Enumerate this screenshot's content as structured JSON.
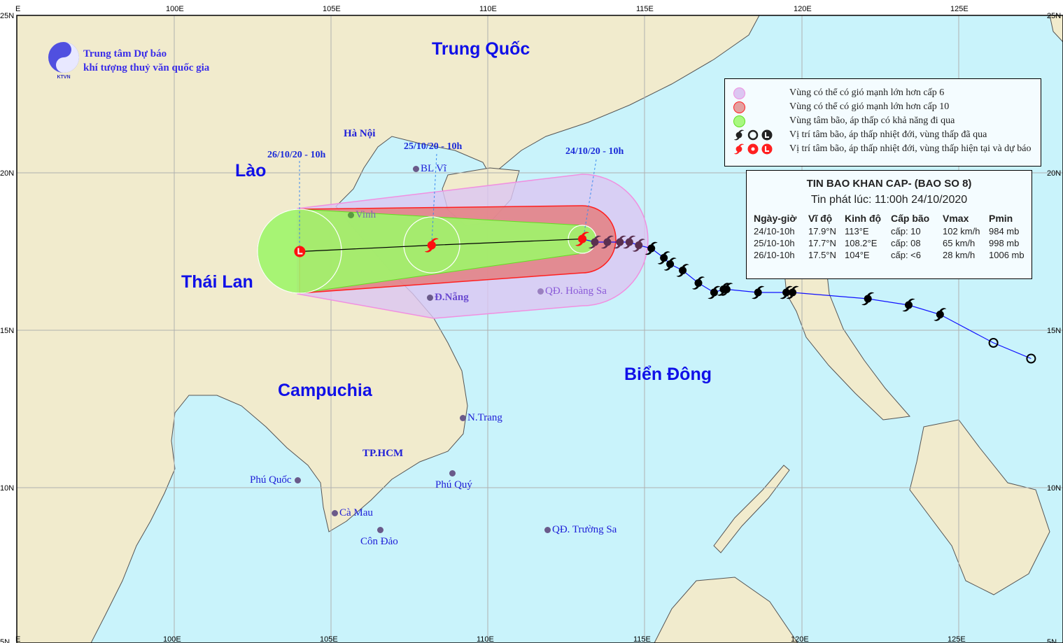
{
  "organization": {
    "logo_text": "KTVN",
    "line1": "Trung tâm Dự báo",
    "line2": "khí tượng thuỷ văn quốc gia"
  },
  "colors": {
    "sea": "#c9f3fb",
    "land": "#f1ebcd",
    "zone_gt_cap6": "#dcc6f2",
    "zone_gt_cap10": "#e47f80",
    "zone_center_path": "#9ef56a",
    "past_track": "#1010ff",
    "forecast": "#ff1010"
  },
  "axes": {
    "top_lon_labels": [
      "E",
      "100E",
      "105E",
      "110E",
      "115E",
      "120E",
      "125E"
    ],
    "bottom_lon_labels": [
      "E",
      "100E",
      "105E",
      "110E",
      "115E",
      "120E",
      "125E"
    ],
    "left_lat_labels": [
      "25N",
      "20N",
      "15N",
      "10N",
      "5N"
    ],
    "right_lat_labels": [
      "25N",
      "20N",
      "15N",
      "10N",
      "5N"
    ]
  },
  "countries": {
    "china": "Trung Quốc",
    "laos": "Lào",
    "thailand": "Thái Lan",
    "cambodia": "Campuchia",
    "east_sea": "Biển Đông"
  },
  "cities": {
    "hanoi": "Hà Nội",
    "bach_long_vi": "BL Vĩ",
    "vinh": "Vinh",
    "da_nang": "Đ.Nẵng",
    "hoang_sa": "QĐ. Hoàng Sa",
    "nha_trang": "N.Trang",
    "hcm": "TP.HCM",
    "phu_quoc": "Phú Quốc",
    "phu_quy": "Phú Quý",
    "ca_mau": "Cà Mau",
    "con_dao": "Côn Đảo",
    "truong_sa": "QĐ. Trường Sa"
  },
  "forecast_labels": [
    "24/10/20 - 10h",
    "25/10/20 - 10h",
    "26/10/20 - 10h"
  ],
  "forecast_points": [
    {
      "lat": 17.9,
      "lon": 113.0,
      "type": "storm"
    },
    {
      "lat": 17.7,
      "lon": 108.2,
      "type": "storm"
    },
    {
      "lat": 17.5,
      "lon": 104.0,
      "type": "low"
    }
  ],
  "past_track": [
    {
      "lat": 14.1,
      "lon": 127.3,
      "type": "depression"
    },
    {
      "lat": 14.6,
      "lon": 126.1,
      "type": "depression"
    },
    {
      "lat": 15.5,
      "lon": 124.4,
      "type": "storm"
    },
    {
      "lat": 15.8,
      "lon": 123.4,
      "type": "storm"
    },
    {
      "lat": 16.0,
      "lon": 122.1,
      "type": "storm"
    },
    {
      "lat": 16.2,
      "lon": 119.7,
      "type": "storm"
    },
    {
      "lat": 16.2,
      "lon": 119.5,
      "type": "storm"
    },
    {
      "lat": 16.2,
      "lon": 118.6,
      "type": "storm"
    },
    {
      "lat": 16.3,
      "lon": 117.6,
      "type": "storm"
    },
    {
      "lat": 16.3,
      "lon": 117.5,
      "type": "storm"
    },
    {
      "lat": 16.2,
      "lon": 117.2,
      "type": "storm"
    },
    {
      "lat": 16.5,
      "lon": 116.7,
      "type": "storm"
    },
    {
      "lat": 16.9,
      "lon": 116.2,
      "type": "storm"
    },
    {
      "lat": 17.1,
      "lon": 115.8,
      "type": "storm"
    },
    {
      "lat": 17.3,
      "lon": 115.6,
      "type": "storm"
    },
    {
      "lat": 17.6,
      "lon": 115.2,
      "type": "storm"
    },
    {
      "lat": 17.7,
      "lon": 114.8,
      "type": "storm"
    },
    {
      "lat": 17.8,
      "lon": 114.5,
      "type": "storm"
    },
    {
      "lat": 17.8,
      "lon": 114.2,
      "type": "storm"
    },
    {
      "lat": 17.8,
      "lon": 113.8,
      "type": "storm"
    },
    {
      "lat": 17.8,
      "lon": 113.4,
      "type": "storm"
    }
  ],
  "legend": {
    "items": [
      {
        "label": "Vùng có thể có gió mạnh lớn hơn cấp 6"
      },
      {
        "label": "Vùng có thể có gió mạnh lớn hơn cấp 10"
      },
      {
        "label": "Vùng tâm bão, áp thấp có khả năng đi qua"
      },
      {
        "label": "Vị trí tâm bão, áp thấp nhiệt đới, vùng thấp đã qua"
      },
      {
        "label": "Vị trí tâm bão, áp thấp nhiệt đới, vùng thấp hiện tại và dự báo"
      }
    ]
  },
  "info": {
    "title": "TIN BAO KHAN CAP- (BAO SO 8)",
    "issued": "Tin phát lúc: 11:00h 24/10/2020",
    "headers": [
      "Ngày-giờ",
      "Vĩ độ",
      "Kinh độ",
      "Cấp bão",
      "Vmax",
      "Pmin"
    ],
    "rows": [
      [
        "24/10-10h",
        "17.9°N",
        "113°E",
        "cấp: 10",
        "102 km/h",
        "984 mb"
      ],
      [
        "25/10-10h",
        "17.7°N",
        "108.2°E",
        "cấp: 08",
        "65 km/h",
        "998 mb"
      ],
      [
        "26/10-10h",
        "17.5°N",
        "104°E",
        "cấp: <6",
        "28 km/h",
        "1006 mb"
      ]
    ]
  }
}
